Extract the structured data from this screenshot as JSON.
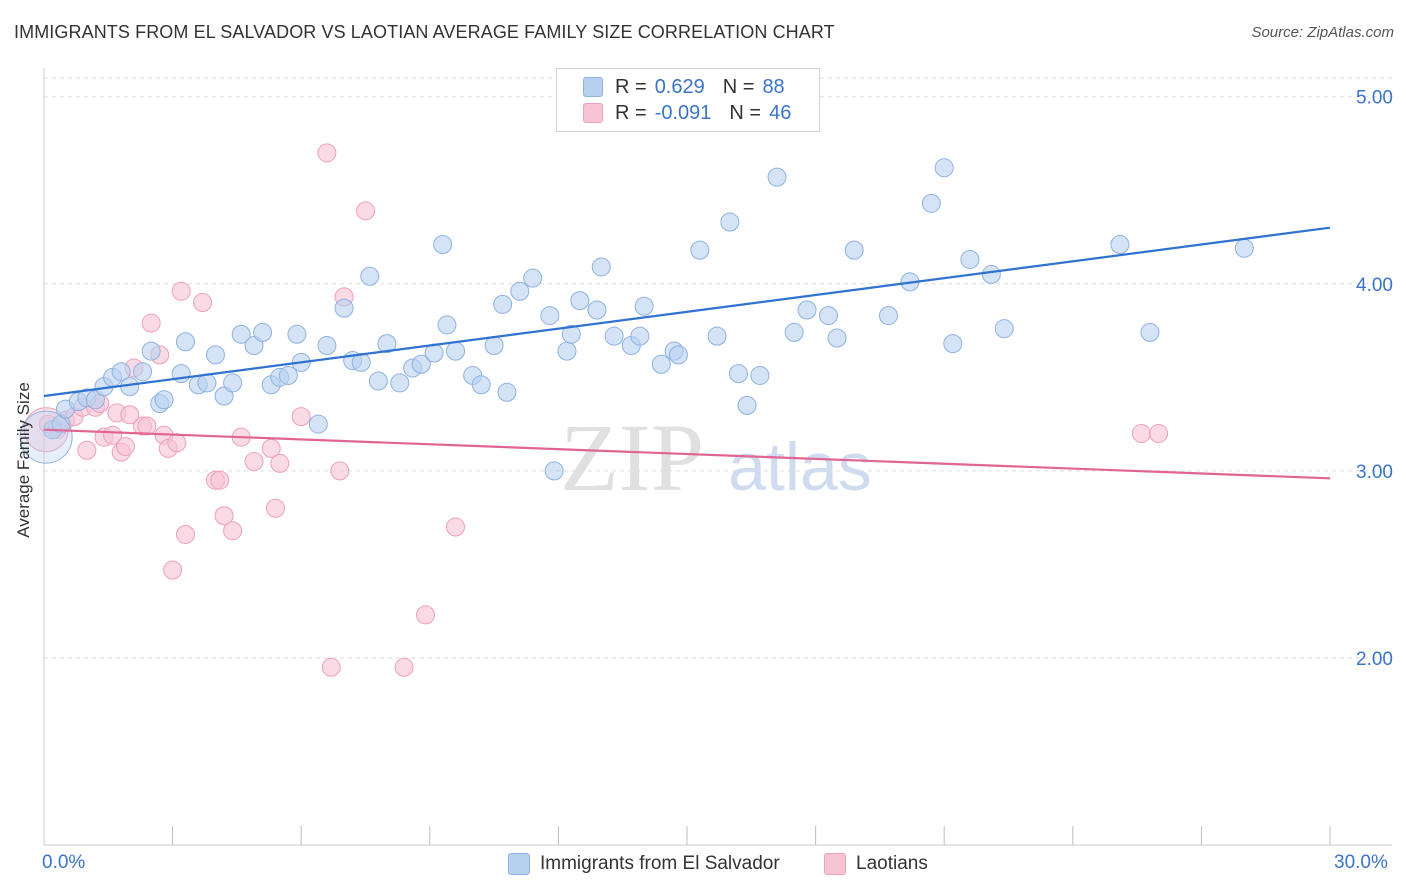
{
  "title": "IMMIGRANTS FROM EL SALVADOR VS LAOTIAN AVERAGE FAMILY SIZE CORRELATION CHART",
  "source": "Source: ZipAtlas.com",
  "watermark": {
    "zip": "ZIP",
    "atlas": "atlas"
  },
  "legend": {
    "r_label": "R =",
    "n_label": "N =",
    "series1": {
      "r": "0.629",
      "n": "88"
    },
    "series2": {
      "r": "-0.091",
      "n": "46"
    }
  },
  "colors": {
    "blue_fill": "#b8d0f0",
    "blue_stroke": "#8eb2e0",
    "blue_line": "#2f72d0",
    "pink_fill": "#f6c3d3",
    "pink_stroke": "#eea0b8",
    "pink_line": "#e06592",
    "axis_text": "#3a74c9",
    "grid": "#dddddd"
  },
  "chart_data": {
    "type": "scatter",
    "title": "IMMIGRANTS FROM EL SALVADOR VS LAOTIAN AVERAGE FAMILY SIZE CORRELATION CHART",
    "xlabel": "",
    "ylabel": "Average Family Size",
    "xlim": [
      0,
      30
    ],
    "ylim": [
      1.0,
      5.1
    ],
    "x_tick_labels": [
      "0.0%",
      "30.0%"
    ],
    "y_ticks": [
      2.0,
      3.0,
      4.0,
      5.0
    ],
    "y_tick_labels": [
      "2.00",
      "3.00",
      "4.00",
      "5.00"
    ],
    "grid": true,
    "legend_position": "top-center",
    "series": [
      {
        "name": "Immigrants from El Salvador",
        "color": "#b8d0f0",
        "trend": {
          "x": [
            0,
            30
          ],
          "y": [
            3.4,
            4.3
          ]
        },
        "points": [
          [
            0.2,
            3.22
          ],
          [
            0.4,
            3.25
          ],
          [
            0.5,
            3.33
          ],
          [
            0.8,
            3.37
          ],
          [
            1.0,
            3.39
          ],
          [
            1.2,
            3.38
          ],
          [
            1.4,
            3.45
          ],
          [
            1.6,
            3.5
          ],
          [
            1.8,
            3.53
          ],
          [
            2.0,
            3.45
          ],
          [
            2.3,
            3.53
          ],
          [
            2.5,
            3.64
          ],
          [
            2.7,
            3.36
          ],
          [
            2.8,
            3.38
          ],
          [
            3.2,
            3.52
          ],
          [
            3.3,
            3.69
          ],
          [
            3.6,
            3.46
          ],
          [
            3.8,
            3.47
          ],
          [
            4.0,
            3.62
          ],
          [
            4.2,
            3.4
          ],
          [
            4.4,
            3.47
          ],
          [
            4.6,
            3.73
          ],
          [
            4.9,
            3.67
          ],
          [
            5.1,
            3.74
          ],
          [
            5.3,
            3.46
          ],
          [
            5.5,
            3.5
          ],
          [
            5.7,
            3.51
          ],
          [
            5.9,
            3.73
          ],
          [
            6.0,
            3.58
          ],
          [
            6.4,
            3.25
          ],
          [
            6.6,
            3.67
          ],
          [
            7.0,
            3.87
          ],
          [
            7.2,
            3.59
          ],
          [
            7.4,
            3.58
          ],
          [
            7.6,
            4.04
          ],
          [
            7.8,
            3.48
          ],
          [
            8.0,
            3.68
          ],
          [
            8.3,
            3.47
          ],
          [
            8.6,
            3.55
          ],
          [
            8.8,
            3.57
          ],
          [
            9.1,
            3.63
          ],
          [
            9.3,
            4.21
          ],
          [
            9.4,
            3.78
          ],
          [
            9.6,
            3.64
          ],
          [
            10.0,
            3.51
          ],
          [
            10.2,
            3.46
          ],
          [
            10.5,
            3.67
          ],
          [
            10.7,
            3.89
          ],
          [
            10.8,
            3.42
          ],
          [
            11.1,
            3.96
          ],
          [
            11.4,
            4.03
          ],
          [
            11.8,
            3.83
          ],
          [
            12.2,
            3.64
          ],
          [
            12.3,
            3.73
          ],
          [
            12.5,
            3.91
          ],
          [
            12.9,
            3.86
          ],
          [
            13.0,
            4.09
          ],
          [
            13.3,
            3.72
          ],
          [
            13.7,
            3.67
          ],
          [
            13.9,
            3.72
          ],
          [
            14.0,
            3.88
          ],
          [
            14.4,
            3.57
          ],
          [
            14.7,
            3.64
          ],
          [
            14.8,
            3.62
          ],
          [
            15.3,
            4.18
          ],
          [
            15.7,
            3.72
          ],
          [
            16.0,
            4.33
          ],
          [
            16.2,
            3.52
          ],
          [
            16.4,
            3.35
          ],
          [
            16.7,
            3.51
          ],
          [
            17.1,
            4.57
          ],
          [
            17.5,
            3.74
          ],
          [
            17.8,
            3.86
          ],
          [
            18.3,
            3.83
          ],
          [
            18.5,
            3.71
          ],
          [
            18.9,
            4.18
          ],
          [
            19.7,
            3.83
          ],
          [
            20.2,
            4.01
          ],
          [
            20.7,
            4.43
          ],
          [
            21.0,
            4.62
          ],
          [
            21.2,
            3.68
          ],
          [
            21.6,
            4.13
          ],
          [
            22.1,
            4.05
          ],
          [
            22.4,
            3.76
          ],
          [
            25.1,
            4.21
          ],
          [
            25.8,
            3.74
          ],
          [
            28.0,
            4.19
          ],
          [
            11.9,
            3.0
          ]
        ]
      },
      {
        "name": "Laotians",
        "color": "#f6c3d3",
        "trend": {
          "x": [
            0,
            30
          ],
          "y": [
            3.22,
            2.96
          ]
        },
        "points": [
          [
            0.1,
            3.25
          ],
          [
            0.3,
            3.22
          ],
          [
            0.5,
            3.27
          ],
          [
            0.7,
            3.29
          ],
          [
            0.9,
            3.34
          ],
          [
            1.0,
            3.11
          ],
          [
            1.2,
            3.34
          ],
          [
            1.4,
            3.18
          ],
          [
            1.6,
            3.19
          ],
          [
            1.7,
            3.31
          ],
          [
            1.8,
            3.1
          ],
          [
            1.9,
            3.13
          ],
          [
            2.1,
            3.55
          ],
          [
            2.3,
            3.24
          ],
          [
            2.4,
            3.24
          ],
          [
            2.5,
            3.79
          ],
          [
            2.7,
            3.62
          ],
          [
            2.8,
            3.19
          ],
          [
            2.9,
            3.12
          ],
          [
            3.0,
            2.47
          ],
          [
            3.1,
            3.15
          ],
          [
            3.2,
            3.96
          ],
          [
            3.3,
            2.66
          ],
          [
            3.7,
            3.9
          ],
          [
            4.0,
            2.95
          ],
          [
            4.1,
            2.95
          ],
          [
            4.2,
            2.76
          ],
          [
            4.4,
            2.68
          ],
          [
            4.6,
            3.18
          ],
          [
            4.9,
            3.05
          ],
          [
            5.3,
            3.12
          ],
          [
            5.4,
            2.8
          ],
          [
            5.5,
            3.04
          ],
          [
            6.0,
            3.29
          ],
          [
            6.6,
            4.7
          ],
          [
            6.7,
            1.95
          ],
          [
            6.9,
            3.0
          ],
          [
            7.0,
            3.93
          ],
          [
            7.5,
            4.39
          ],
          [
            8.4,
            1.95
          ],
          [
            8.9,
            2.23
          ],
          [
            9.6,
            2.7
          ],
          [
            25.6,
            3.2
          ],
          [
            26.0,
            3.2
          ],
          [
            1.3,
            3.36
          ],
          [
            2.0,
            3.3
          ]
        ]
      }
    ]
  },
  "bottom_legend": {
    "series1": "Immigrants from El Salvador",
    "series2": "Laotians"
  }
}
